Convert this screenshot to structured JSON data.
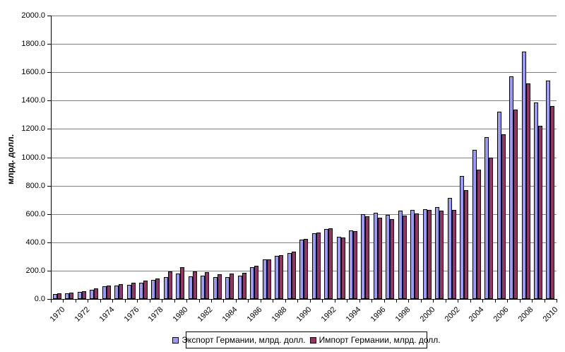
{
  "y_axis": {
    "title": "млрд. долл.",
    "tick_labels": [
      "0.0",
      "200.0",
      "400.0",
      "600.0",
      "800.0",
      "1000.0",
      "1200.0",
      "1400.0",
      "1600.0",
      "1800.0",
      "2000.0"
    ]
  },
  "x_axis": {
    "shown_tick_labels": [
      "1970",
      "1972",
      "1974",
      "1976",
      "1978",
      "1980",
      "1982",
      "1984",
      "1986",
      "1988",
      "1990",
      "1992",
      "1994",
      "1996",
      "1998",
      "2000",
      "2002",
      "2004",
      "2006",
      "2008",
      "2010"
    ]
  },
  "legend": {
    "export_label": "Экспорт Германии, млрд. долл.",
    "import_label": "Импорт Германии, млрд. долл."
  },
  "colors": {
    "export_fill": "#9999FF",
    "import_fill": "#993366",
    "bar_border": "#000000",
    "gridline": "#808080"
  },
  "chart_data": {
    "type": "bar",
    "title": "",
    "xlabel": "",
    "ylabel": "млрд. долл.",
    "ylim": [
      0,
      2000
    ],
    "ytick_step": 200,
    "grid": true,
    "legend_position": "bottom",
    "categories": [
      1970,
      1971,
      1972,
      1973,
      1974,
      1975,
      1976,
      1977,
      1978,
      1979,
      1980,
      1981,
      1982,
      1983,
      1984,
      1985,
      1986,
      1987,
      1988,
      1989,
      1990,
      1991,
      1992,
      1993,
      1994,
      1995,
      1996,
      1997,
      1998,
      1999,
      2000,
      2001,
      2002,
      2003,
      2004,
      2005,
      2006,
      2007,
      2008,
      2009,
      2010
    ],
    "series": [
      {
        "name": "Экспорт Германии, млрд. долл.",
        "color": "#9999FF",
        "values": [
          34,
          41,
          50,
          67,
          90,
          97,
          102,
          117,
          135,
          157,
          181,
          162,
          166,
          154,
          156,
          167,
          225,
          277,
          305,
          325,
          420,
          464,
          492,
          438,
          483,
          597,
          606,
          596,
          622,
          628,
          633,
          648,
          715,
          866,
          1052,
          1144,
          1323,
          1570,
          1746,
          1385,
          1542
        ]
      },
      {
        "name": "Импорт Германии, млрд. долл.",
        "color": "#993366",
        "values": [
          40,
          47,
          57,
          75,
          97,
          107,
          114,
          130,
          147,
          196,
          225,
          195,
          188,
          175,
          178,
          186,
          232,
          281,
          310,
          332,
          424,
          471,
          501,
          434,
          478,
          584,
          576,
          562,
          590,
          603,
          626,
          621,
          628,
          766,
          911,
          999,
          1160,
          1335,
          1520,
          1223,
          1360
        ]
      }
    ]
  }
}
